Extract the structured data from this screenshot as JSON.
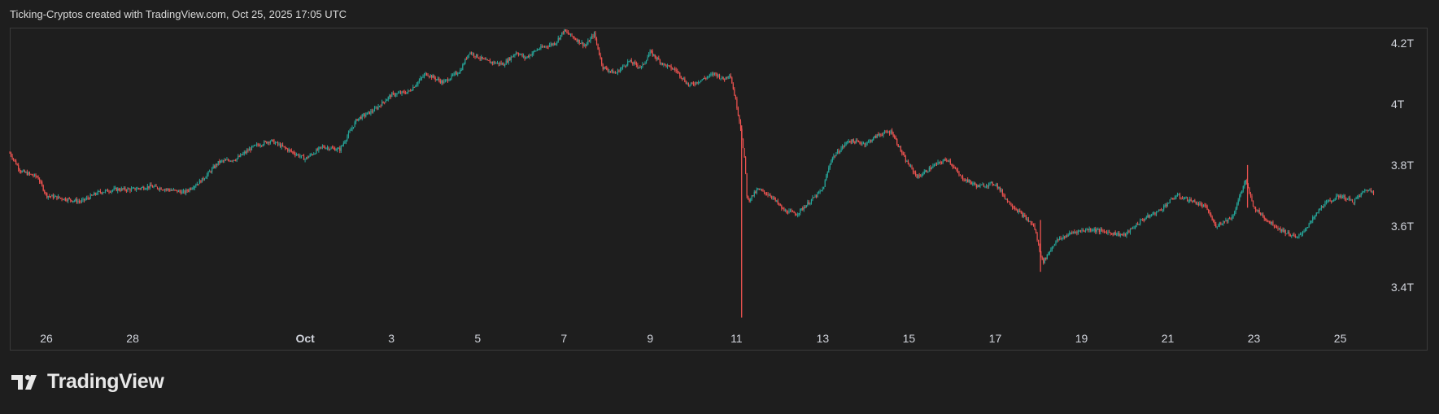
{
  "header": {
    "caption": "Ticking-Cryptos created with TradingView.com, Oct 25, 2025 17:05 UTC"
  },
  "brand": {
    "name": "TradingView",
    "logo_icon": "tradingview-logo-icon"
  },
  "colors": {
    "background": "#1e1e1e",
    "up": "#26a69a",
    "down": "#ef5350",
    "border": "#3a3a3a",
    "text": "#d1d4dc"
  },
  "chart_data": {
    "type": "candlestick",
    "y_unit": "T",
    "y_ticks": [
      {
        "value": 4.2,
        "label": "4.2T"
      },
      {
        "value": 4.0,
        "label": "4T"
      },
      {
        "value": 3.8,
        "label": "3.8T"
      },
      {
        "value": 3.6,
        "label": "3.6T"
      },
      {
        "value": 3.4,
        "label": "3.4T"
      }
    ],
    "ylim": [
      3.28,
      4.25
    ],
    "x_range_days": [
      -5.85,
      25.8
    ],
    "x_ticks": [
      {
        "day": -5,
        "label": "26",
        "bold": false
      },
      {
        "day": -3,
        "label": "28",
        "bold": false
      },
      {
        "day": 1,
        "label": "Oct",
        "bold": true
      },
      {
        "day": 3,
        "label": "3",
        "bold": false
      },
      {
        "day": 5,
        "label": "5",
        "bold": false
      },
      {
        "day": 7,
        "label": "7",
        "bold": false
      },
      {
        "day": 9,
        "label": "9",
        "bold": false
      },
      {
        "day": 11,
        "label": "11",
        "bold": false
      },
      {
        "day": 13,
        "label": "13",
        "bold": false
      },
      {
        "day": 15,
        "label": "15",
        "bold": false
      },
      {
        "day": 17,
        "label": "17",
        "bold": false
      },
      {
        "day": 19,
        "label": "19",
        "bold": false
      },
      {
        "day": 21,
        "label": "21",
        "bold": false
      },
      {
        "day": 23,
        "label": "23",
        "bold": false
      },
      {
        "day": 25,
        "label": "25",
        "bold": false
      }
    ],
    "price_path": [
      [
        -5.85,
        3.84
      ],
      [
        -5.6,
        3.78
      ],
      [
        -5.2,
        3.76
      ],
      [
        -5.0,
        3.7
      ],
      [
        -4.6,
        3.69
      ],
      [
        -4.2,
        3.68
      ],
      [
        -3.8,
        3.71
      ],
      [
        -3.4,
        3.72
      ],
      [
        -3.0,
        3.72
      ],
      [
        -2.6,
        3.73
      ],
      [
        -2.2,
        3.72
      ],
      [
        -1.8,
        3.71
      ],
      [
        -1.4,
        3.75
      ],
      [
        -1.0,
        3.81
      ],
      [
        -0.6,
        3.82
      ],
      [
        -0.2,
        3.86
      ],
      [
        0.2,
        3.88
      ],
      [
        0.6,
        3.85
      ],
      [
        1.0,
        3.82
      ],
      [
        1.4,
        3.86
      ],
      [
        1.8,
        3.85
      ],
      [
        2.2,
        3.95
      ],
      [
        2.6,
        3.98
      ],
      [
        3.0,
        4.03
      ],
      [
        3.4,
        4.04
      ],
      [
        3.8,
        4.1
      ],
      [
        4.2,
        4.07
      ],
      [
        4.6,
        4.11
      ],
      [
        4.8,
        4.17
      ],
      [
        5.2,
        4.14
      ],
      [
        5.6,
        4.13
      ],
      [
        5.9,
        4.17
      ],
      [
        6.1,
        4.15
      ],
      [
        6.4,
        4.18
      ],
      [
        6.8,
        4.2
      ],
      [
        7.0,
        4.24
      ],
      [
        7.3,
        4.21
      ],
      [
        7.5,
        4.19
      ],
      [
        7.7,
        4.23
      ],
      [
        7.9,
        4.12
      ],
      [
        8.2,
        4.1
      ],
      [
        8.5,
        4.14
      ],
      [
        8.8,
        4.12
      ],
      [
        9.0,
        4.17
      ],
      [
        9.3,
        4.13
      ],
      [
        9.6,
        4.11
      ],
      [
        9.9,
        4.06
      ],
      [
        10.2,
        4.08
      ],
      [
        10.5,
        4.1
      ],
      [
        10.7,
        4.08
      ],
      [
        10.85,
        4.1
      ],
      [
        11.0,
        4.0
      ],
      [
        11.1,
        3.92
      ],
      [
        11.2,
        3.8
      ],
      [
        11.25,
        3.68
      ],
      [
        11.5,
        3.72
      ],
      [
        11.8,
        3.7
      ],
      [
        12.1,
        3.65
      ],
      [
        12.4,
        3.64
      ],
      [
        12.7,
        3.68
      ],
      [
        13.0,
        3.72
      ],
      [
        13.2,
        3.82
      ],
      [
        13.6,
        3.88
      ],
      [
        14.0,
        3.87
      ],
      [
        14.3,
        3.9
      ],
      [
        14.6,
        3.91
      ],
      [
        14.9,
        3.82
      ],
      [
        15.2,
        3.76
      ],
      [
        15.6,
        3.8
      ],
      [
        15.9,
        3.82
      ],
      [
        16.2,
        3.76
      ],
      [
        16.6,
        3.73
      ],
      [
        17.0,
        3.74
      ],
      [
        17.3,
        3.68
      ],
      [
        17.6,
        3.64
      ],
      [
        17.9,
        3.6
      ],
      [
        18.1,
        3.48
      ],
      [
        18.4,
        3.55
      ],
      [
        18.8,
        3.58
      ],
      [
        19.2,
        3.59
      ],
      [
        19.6,
        3.58
      ],
      [
        20.0,
        3.57
      ],
      [
        20.4,
        3.62
      ],
      [
        20.8,
        3.65
      ],
      [
        21.2,
        3.7
      ],
      [
        21.6,
        3.68
      ],
      [
        21.9,
        3.66
      ],
      [
        22.1,
        3.6
      ],
      [
        22.5,
        3.63
      ],
      [
        22.8,
        3.75
      ],
      [
        23.0,
        3.66
      ],
      [
        23.3,
        3.62
      ],
      [
        23.6,
        3.59
      ],
      [
        24.0,
        3.56
      ],
      [
        24.3,
        3.61
      ],
      [
        24.6,
        3.67
      ],
      [
        25.0,
        3.7
      ],
      [
        25.3,
        3.68
      ],
      [
        25.6,
        3.72
      ],
      [
        25.8,
        3.71
      ]
    ],
    "notable_wicks": [
      {
        "day": 11.12,
        "high": 3.93,
        "low": 3.3
      },
      {
        "day": 18.05,
        "high": 3.62,
        "low": 3.45
      },
      {
        "day": 22.85,
        "high": 3.8,
        "low": 3.66
      }
    ]
  }
}
